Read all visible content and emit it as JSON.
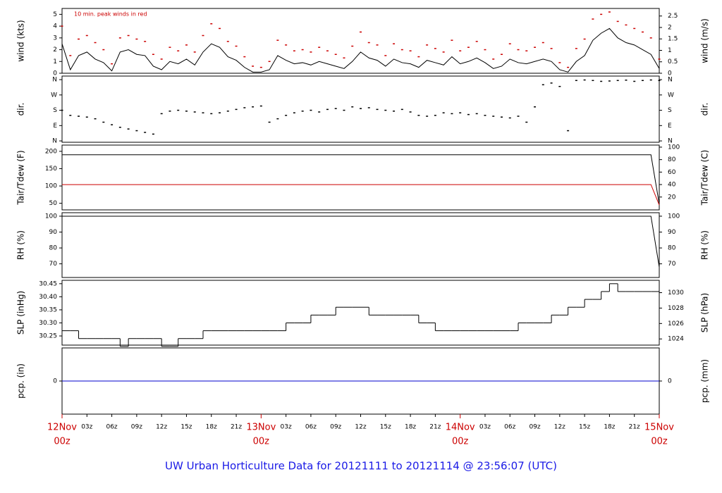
{
  "title": "UW Urban Horticulture Data for 20121111  to  20121114 @ 23:56:07  (UTC)",
  "time": {
    "xlim": [
      0,
      72
    ],
    "x": [
      0,
      1,
      2,
      3,
      4,
      5,
      6,
      7,
      8,
      9,
      10,
      11,
      12,
      13,
      14,
      15,
      16,
      17,
      18,
      19,
      20,
      21,
      22,
      23,
      24,
      25,
      26,
      27,
      28,
      29,
      30,
      31,
      32,
      33,
      34,
      35,
      36,
      37,
      38,
      39,
      40,
      41,
      42,
      43,
      44,
      45,
      46,
      47,
      48,
      49,
      50,
      51,
      52,
      53,
      54,
      55,
      56,
      57,
      58,
      59,
      60,
      61,
      62,
      63,
      64,
      65,
      66,
      67,
      68,
      69,
      70,
      71,
      72
    ],
    "xticks": [
      {
        "value": 3,
        "label": "03z"
      },
      {
        "value": 6,
        "label": "06z"
      },
      {
        "value": 9,
        "label": "09z"
      },
      {
        "value": 12,
        "label": "12z"
      },
      {
        "value": 15,
        "label": "15z"
      },
      {
        "value": 18,
        "label": "18z"
      },
      {
        "value": 21,
        "label": "21z"
      },
      {
        "value": 27,
        "label": "03z"
      },
      {
        "value": 30,
        "label": "06z"
      },
      {
        "value": 33,
        "label": "09z"
      },
      {
        "value": 36,
        "label": "12z"
      },
      {
        "value": 39,
        "label": "15z"
      },
      {
        "value": 42,
        "label": "18z"
      },
      {
        "value": 45,
        "label": "21z"
      },
      {
        "value": 51,
        "label": "03z"
      },
      {
        "value": 54,
        "label": "06z"
      },
      {
        "value": 57,
        "label": "09z"
      },
      {
        "value": 60,
        "label": "12z"
      },
      {
        "value": 63,
        "label": "15z"
      },
      {
        "value": 66,
        "label": "18z"
      },
      {
        "value": 69,
        "label": "21z"
      }
    ],
    "days": [
      {
        "value": 0,
        "label": "12Nov",
        "sub": "00z"
      },
      {
        "value": 24,
        "label": "13Nov",
        "sub": "00z"
      },
      {
        "value": 48,
        "label": "14Nov",
        "sub": "00z"
      },
      {
        "value": 72,
        "label": "15Nov",
        "sub": "00z"
      }
    ]
  },
  "chart_data": [
    {
      "type": "line",
      "ylabel": "wind (kts)",
      "y2label": "wind (m/s)",
      "annotation": "10 min. peak winds in red",
      "ylim": [
        0,
        5.5
      ],
      "yticks": [
        0,
        1,
        2,
        3,
        4,
        5
      ],
      "y2lim": [
        0,
        2.83
      ],
      "y2ticks": [
        0,
        0.5,
        1,
        1.5,
        2,
        2.5
      ],
      "series": [
        {
          "color": "#000000",
          "values": [
            2.5,
            0.3,
            1.5,
            1.8,
            1.2,
            0.9,
            0.2,
            1.8,
            2.0,
            1.6,
            1.5,
            0.6,
            0.3,
            1.0,
            0.8,
            1.2,
            0.7,
            1.8,
            2.5,
            2.2,
            1.4,
            1.1,
            0.5,
            0.1,
            0.1,
            0.3,
            1.5,
            1.1,
            0.8,
            0.9,
            0.7,
            1.0,
            0.8,
            0.6,
            0.4,
            1.0,
            1.8,
            1.3,
            1.1,
            0.6,
            1.2,
            0.9,
            0.8,
            0.5,
            1.1,
            0.9,
            0.7,
            1.4,
            0.8,
            1.0,
            1.3,
            0.9,
            0.4,
            0.6,
            1.2,
            0.9,
            0.8,
            1.0,
            1.2,
            1.0,
            0.3,
            0.1,
            1.0,
            1.5,
            2.8,
            3.4,
            3.8,
            3.0,
            2.6,
            2.4,
            2.0,
            1.6,
            0.4
          ]
        },
        {
          "type": "scatter",
          "color": "#cc0000",
          "values": [
            4.0,
            1.5,
            2.9,
            3.2,
            2.6,
            2.0,
            0.8,
            3.0,
            3.2,
            2.9,
            2.7,
            1.6,
            1.2,
            2.2,
            1.9,
            2.4,
            1.8,
            3.2,
            4.2,
            3.8,
            2.7,
            2.3,
            1.4,
            0.6,
            0.5,
            1.0,
            2.8,
            2.4,
            1.9,
            2.0,
            1.8,
            2.2,
            1.9,
            1.6,
            1.3,
            2.3,
            3.5,
            2.6,
            2.4,
            1.5,
            2.5,
            2.0,
            1.9,
            1.4,
            2.4,
            2.1,
            1.8,
            2.8,
            1.9,
            2.2,
            2.7,
            2.0,
            1.2,
            1.6,
            2.5,
            2.0,
            1.9,
            2.2,
            2.6,
            2.1,
            0.9,
            0.5,
            2.1,
            2.9,
            4.6,
            5.0,
            5.2,
            4.4,
            4.1,
            3.8,
            3.5,
            3.0,
            1.2
          ]
        }
      ]
    },
    {
      "type": "scatter",
      "ylabel": "dir.",
      "y2label": "dir.",
      "ylim": [
        -8,
        381
      ],
      "yticks": [
        {
          "value": 0,
          "label": "N"
        },
        {
          "value": 90,
          "label": "E"
        },
        {
          "value": 180,
          "label": "S"
        },
        {
          "value": 270,
          "label": "W"
        },
        {
          "value": 360,
          "label": "N"
        }
      ],
      "y2lim": [
        -8,
        381
      ],
      "y2ticks": [
        {
          "value": 0,
          "label": "N"
        },
        {
          "value": 90,
          "label": "E"
        },
        {
          "value": 180,
          "label": "S"
        },
        {
          "value": 270,
          "label": "W"
        },
        {
          "value": 360,
          "label": "N"
        }
      ],
      "series": [
        {
          "color": "#000000",
          "values": [
            180,
            150,
            145,
            140,
            130,
            110,
            95,
            80,
            70,
            60,
            50,
            40,
            160,
            175,
            180,
            175,
            170,
            165,
            160,
            165,
            175,
            185,
            195,
            200,
            205,
            110,
            130,
            150,
            165,
            175,
            180,
            170,
            185,
            190,
            180,
            200,
            190,
            195,
            185,
            180,
            175,
            185,
            170,
            150,
            145,
            150,
            165,
            160,
            165,
            155,
            160,
            150,
            145,
            140,
            135,
            145,
            110,
            200,
            330,
            340,
            320,
            60,
            355,
            358,
            355,
            350,
            352,
            355,
            357,
            350,
            355,
            358,
            355
          ]
        }
      ]
    },
    {
      "type": "line",
      "ylabel": "Tair/Tdew (F)",
      "y2label": "Tair/Tdew (C)",
      "ylim": [
        31,
        218
      ],
      "yticks": [
        50,
        100,
        150,
        200
      ],
      "y2lim": [
        -0.6,
        103.3
      ],
      "y2ticks": [
        20,
        40,
        60,
        80,
        100
      ],
      "series": [
        {
          "color": "#000000",
          "values": [
            190,
            190,
            190,
            190,
            190,
            190,
            190,
            190,
            190,
            190,
            190,
            190,
            190,
            190,
            190,
            190,
            190,
            190,
            190,
            190,
            190,
            190,
            190,
            190,
            190,
            190,
            190,
            190,
            190,
            190,
            190,
            190,
            190,
            190,
            190,
            190,
            190,
            190,
            190,
            190,
            190,
            190,
            190,
            190,
            190,
            190,
            190,
            190,
            190,
            190,
            190,
            190,
            190,
            190,
            190,
            190,
            190,
            190,
            190,
            190,
            190,
            190,
            190,
            190,
            190,
            190,
            190,
            190,
            190,
            190,
            190,
            190,
            48
          ]
        },
        {
          "color": "#cc0000",
          "values": [
            104,
            104,
            104,
            104,
            104,
            104,
            104,
            104,
            104,
            104,
            104,
            104,
            104,
            104,
            104,
            104,
            104,
            104,
            104,
            104,
            104,
            104,
            104,
            104,
            104,
            104,
            104,
            104,
            104,
            104,
            104,
            104,
            104,
            104,
            104,
            104,
            104,
            104,
            104,
            104,
            104,
            104,
            104,
            104,
            104,
            104,
            104,
            104,
            104,
            104,
            104,
            104,
            104,
            104,
            104,
            104,
            104,
            104,
            104,
            104,
            104,
            104,
            104,
            104,
            104,
            104,
            104,
            104,
            104,
            104,
            104,
            104,
            45
          ]
        }
      ]
    },
    {
      "type": "line",
      "ylabel": "RH (%)",
      "y2label": "RH (%)",
      "ylim": [
        61.4,
        102.2
      ],
      "yticks": [
        70,
        80,
        90,
        100
      ],
      "y2lim": [
        61.4,
        102.2
      ],
      "y2ticks": [
        70,
        80,
        90,
        100
      ],
      "series": [
        {
          "color": "#000000",
          "values": [
            100,
            100,
            100,
            100,
            100,
            100,
            100,
            100,
            100,
            100,
            100,
            100,
            100,
            100,
            100,
            100,
            100,
            100,
            100,
            100,
            100,
            100,
            100,
            100,
            100,
            100,
            100,
            100,
            100,
            100,
            100,
            100,
            100,
            100,
            100,
            100,
            100,
            100,
            100,
            100,
            100,
            100,
            100,
            100,
            100,
            100,
            100,
            100,
            100,
            100,
            100,
            100,
            100,
            100,
            100,
            100,
            100,
            100,
            100,
            100,
            100,
            100,
            100,
            100,
            100,
            100,
            100,
            100,
            100,
            100,
            100,
            100,
            68
          ]
        }
      ]
    },
    {
      "type": "step",
      "ylabel": "SLP (inHg)",
      "y2label": "SLP (hPa)",
      "ylim": [
        30.215,
        30.463
      ],
      "yticks": [
        30.25,
        {
          "value": 30.3,
          "label": "30.30"
        },
        30.35,
        {
          "value": 30.4,
          "label": "30.40"
        },
        30.45
      ],
      "y2lim": [
        1023.2,
        1031.6
      ],
      "y2ticks": [
        1024,
        1026,
        1028,
        1030
      ],
      "series": [
        {
          "color": "#000000",
          "values": [
            30.27,
            30.27,
            30.24,
            30.24,
            30.24,
            30.24,
            30.24,
            30.21,
            30.24,
            30.24,
            30.24,
            30.24,
            30.21,
            30.21,
            30.24,
            30.24,
            30.24,
            30.27,
            30.27,
            30.27,
            30.27,
            30.27,
            30.27,
            30.27,
            30.27,
            30.27,
            30.27,
            30.3,
            30.3,
            30.3,
            30.33,
            30.33,
            30.33,
            30.36,
            30.36,
            30.36,
            30.36,
            30.33,
            30.33,
            30.33,
            30.33,
            30.33,
            30.33,
            30.3,
            30.3,
            30.27,
            30.27,
            30.27,
            30.27,
            30.27,
            30.27,
            30.27,
            30.27,
            30.27,
            30.27,
            30.3,
            30.3,
            30.3,
            30.3,
            30.33,
            30.33,
            30.36,
            30.36,
            30.39,
            30.39,
            30.42,
            30.45,
            30.42,
            30.42,
            30.42,
            30.42,
            30.42,
            30.45
          ]
        }
      ]
    },
    {
      "type": "line",
      "ylabel": "pcp. (in)",
      "y2label": "pcp. (mm)",
      "ylim": [
        -1,
        1
      ],
      "yticks": [
        0
      ],
      "y2lim": [
        -25.4,
        25.4
      ],
      "y2ticks": [
        0
      ],
      "series": [
        {
          "color": "#0000cc",
          "values": [
            0,
            0,
            0,
            0,
            0,
            0,
            0,
            0,
            0,
            0,
            0,
            0,
            0,
            0,
            0,
            0,
            0,
            0,
            0,
            0,
            0,
            0,
            0,
            0,
            0,
            0,
            0,
            0,
            0,
            0,
            0,
            0,
            0,
            0,
            0,
            0,
            0,
            0,
            0,
            0,
            0,
            0,
            0,
            0,
            0,
            0,
            0,
            0,
            0,
            0,
            0,
            0,
            0,
            0,
            0,
            0,
            0,
            0,
            0,
            0,
            0,
            0,
            0,
            0,
            0,
            0,
            0,
            0,
            0,
            0,
            0,
            0,
            0
          ]
        }
      ]
    }
  ]
}
